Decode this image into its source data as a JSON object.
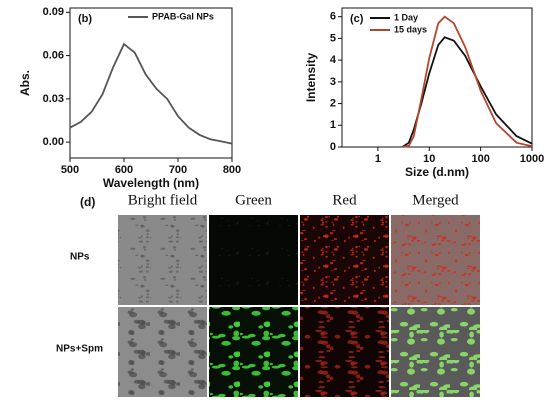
{
  "chart_data": [
    {
      "type": "line",
      "title": "(b)",
      "x_label": "Wavelength (nm)",
      "y_label": "Abs.",
      "x": [
        500,
        520,
        540,
        560,
        580,
        600,
        620,
        640,
        660,
        680,
        700,
        720,
        740,
        760,
        780,
        800
      ],
      "series": [
        {
          "name": "PPAB-Gal NPs",
          "color": "#555555",
          "values": [
            0.01,
            0.014,
            0.021,
            0.033,
            0.052,
            0.068,
            0.062,
            0.047,
            0.037,
            0.03,
            0.018,
            0.01,
            0.005,
            0.002,
            0.0005,
            -0.001
          ]
        }
      ],
      "xlim": [
        500,
        800
      ],
      "xticks": [
        500,
        600,
        700,
        800
      ],
      "ylim": [
        -0.011,
        0.093
      ],
      "yticks": [
        {
          "value": 0,
          "label": "0.00"
        },
        {
          "value": 0.03,
          "label": "0.03"
        },
        {
          "value": 0.06,
          "label": "0.06"
        },
        {
          "value": 0.09,
          "label": "0.09"
        }
      ]
    },
    {
      "type": "line",
      "title": "(c)",
      "x_label": "Size (d.nm)",
      "y_label": "Intensity",
      "xscale": "log",
      "x": [
        3,
        4,
        5,
        7,
        10,
        15,
        20,
        30,
        50,
        100,
        200,
        500,
        1000
      ],
      "series": [
        {
          "name": "1 Day",
          "color": "#111111",
          "values": [
            0,
            0.2,
            0.8,
            2.0,
            3.4,
            4.7,
            5.05,
            4.9,
            4.2,
            2.8,
            1.5,
            0.5,
            0.15
          ]
        },
        {
          "name": "15  days",
          "color": "#b5452e",
          "values": [
            0,
            0.05,
            0.5,
            2.2,
            4.1,
            5.7,
            6.0,
            5.7,
            4.6,
            2.6,
            1.1,
            0.2,
            0.03
          ]
        }
      ],
      "xlim": [
        0.2,
        1000
      ],
      "xticks": [
        1,
        10,
        100,
        1000
      ],
      "ylim": [
        0,
        6.4
      ],
      "yticks": [
        0,
        1,
        2,
        3,
        4,
        5,
        6
      ]
    }
  ],
  "panel_d": {
    "label": "(d)",
    "columns": [
      "Bright field",
      "Green",
      "Red",
      "Merged"
    ],
    "rows": [
      "NPs",
      "NPs+Spm"
    ]
  }
}
